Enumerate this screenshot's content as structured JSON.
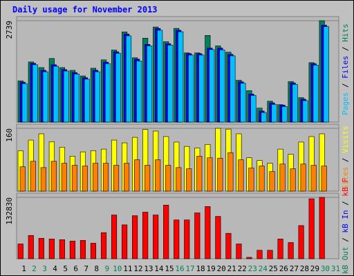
{
  "chart_data": [
    {
      "type": "bar",
      "title": "Daily usage for November 2013",
      "ylim": [
        0,
        2739
      ],
      "yticks": [
        2739
      ],
      "legend_separator": " / ",
      "series": [
        {
          "name": "Hits",
          "color": "#00805c",
          "values": [
            1115,
            1625,
            1473,
            1719,
            1473,
            1398,
            1247,
            1455,
            1681,
            1946,
            2437,
            1738,
            2267,
            2569,
            2172,
            2531,
            1870,
            1870,
            2342,
            2059,
            1889,
            1133,
            850,
            378,
            567,
            472,
            1096,
            661,
            1606,
            2739,
            null
          ]
        },
        {
          "name": "Files",
          "color": "#0000ff",
          "values": [
            1080,
            1590,
            1400,
            1550,
            1420,
            1340,
            1200,
            1400,
            1620,
            1900,
            2380,
            1700,
            2100,
            2530,
            2120,
            2480,
            1850,
            1850,
            2000,
            2000,
            1830,
            1090,
            760,
            300,
            520,
            460,
            1060,
            620,
            1580,
            2620,
            null
          ]
        },
        {
          "name": "Pages",
          "color": "#00c0ff",
          "values": [
            1040,
            1550,
            1360,
            1510,
            1380,
            1300,
            1160,
            1360,
            1580,
            1860,
            2330,
            1650,
            2060,
            2480,
            2080,
            2440,
            1810,
            1810,
            1960,
            1950,
            1790,
            1050,
            720,
            260,
            480,
            420,
            1020,
            580,
            1540,
            2580,
            null
          ]
        }
      ]
    },
    {
      "type": "bar",
      "ylim": [
        0,
        160
      ],
      "yticks": [
        160
      ],
      "legend_separator": " / ",
      "series": [
        {
          "name": "Visits",
          "color": "#ffff00",
          "values": [
            103,
            130,
            146,
            126,
            112,
            89,
            100,
            103,
            107,
            130,
            123,
            137,
            157,
            153,
            139,
            125,
            114,
            110,
            119,
            160,
            158,
            146,
            85,
            78,
            71,
            107,
            94,
            125,
            139,
            146,
            null
          ]
        },
        {
          "name": "Sites",
          "color": "#ff8000",
          "values": [
            62,
            76,
            60,
            76,
            71,
            66,
            64,
            71,
            71,
            66,
            71,
            80,
            66,
            80,
            66,
            60,
            57,
            89,
            85,
            84,
            98,
            80,
            59,
            64,
            50,
            69,
            57,
            69,
            66,
            64,
            null
          ]
        }
      ]
    },
    {
      "type": "bar",
      "ylim": [
        0,
        132830
      ],
      "yticks": [
        132830
      ],
      "legend_separator": " / ",
      "categories": [
        "1",
        "2",
        "3",
        "4",
        "5",
        "6",
        "7",
        "8",
        "9",
        "10",
        "11",
        "12",
        "13",
        "14",
        "15",
        "16",
        "17",
        "18",
        "19",
        "20",
        "21",
        "22",
        "23",
        "24",
        "25",
        "26",
        "27",
        "28",
        "29",
        "30",
        "31"
      ],
      "weekend": [
        1,
        2,
        8,
        9,
        15,
        16,
        22,
        23,
        29,
        30
      ],
      "weekend_color": "#00805c",
      "series": [
        {
          "name": "kB F",
          "color": "#ff0000",
          "values": [
            32067,
            50391,
            44283,
            42756,
            41229,
            38175,
            39702,
            33594,
            56499,
            94674,
            73296,
            93147,
            100782,
            94674,
            116052,
            83985,
            83985,
            99255,
            112998,
            91620,
            54972,
            32067,
            3054,
            18324,
            18324,
            42756,
            35121,
            71769,
            129795,
            132830,
            null
          ]
        },
        {
          "name": "kB In",
          "color": "#0000ff",
          "values": [
            null,
            null,
            null,
            null,
            null,
            null,
            null,
            null,
            null,
            null,
            null,
            null,
            null,
            null,
            null,
            null,
            null,
            null,
            null,
            null,
            null,
            null,
            null,
            null,
            null,
            null,
            null,
            null,
            null,
            null,
            null
          ]
        },
        {
          "name": "kB Out",
          "color": "#00805c",
          "values": [
            null,
            null,
            null,
            null,
            null,
            null,
            null,
            null,
            null,
            null,
            null,
            null,
            null,
            null,
            null,
            null,
            null,
            null,
            null,
            null,
            null,
            null,
            null,
            null,
            null,
            null,
            null,
            null,
            null,
            null,
            null
          ]
        }
      ]
    }
  ]
}
